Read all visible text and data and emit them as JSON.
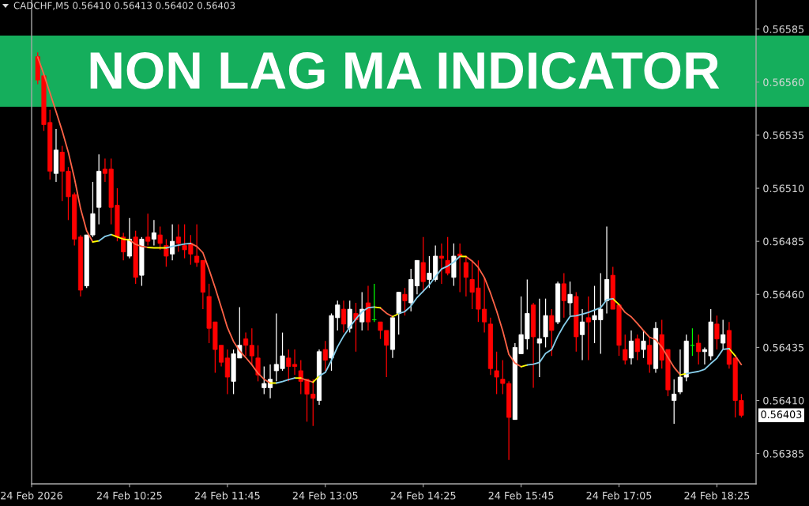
{
  "chart_data": {
    "type": "candlestick",
    "title": "NON LAG MA INDICATOR",
    "subtitle": "CADCHF,M5 0.56410 0.56413 0.56402 0.56403",
    "x": [
      "2026-02-24T09:10",
      "2026-02-24T09:15",
      "2026-02-24T09:20",
      "2026-02-24T09:25",
      "2026-02-24T09:30",
      "2026-02-24T09:35",
      "2026-02-24T09:40",
      "2026-02-24T09:45",
      "2026-02-24T09:50",
      "2026-02-24T09:55",
      "2026-02-24T10:00",
      "2026-02-24T10:05",
      "2026-02-24T10:10",
      "2026-02-24T10:15",
      "2026-02-24T10:20",
      "2026-02-24T10:25",
      "2026-02-24T10:30",
      "2026-02-24T10:35",
      "2026-02-24T10:40",
      "2026-02-24T10:45",
      "2026-02-24T10:50",
      "2026-02-24T10:55",
      "2026-02-24T11:00",
      "2026-02-24T11:05",
      "2026-02-24T11:10",
      "2026-02-24T11:15",
      "2026-02-24T11:20",
      "2026-02-24T11:25",
      "2026-02-24T11:30",
      "2026-02-24T11:35",
      "2026-02-24T11:40",
      "2026-02-24T11:45",
      "2026-02-24T11:50",
      "2026-02-24T11:55",
      "2026-02-24T12:00",
      "2026-02-24T12:05",
      "2026-02-24T12:10",
      "2026-02-24T12:15",
      "2026-02-24T12:20",
      "2026-02-24T12:25",
      "2026-02-24T12:30",
      "2026-02-24T12:35",
      "2026-02-24T12:40",
      "2026-02-24T12:45",
      "2026-02-24T12:50",
      "2026-02-24T12:55",
      "2026-02-24T13:00",
      "2026-02-24T13:05",
      "2026-02-24T13:10",
      "2026-02-24T13:15",
      "2026-02-24T13:20",
      "2026-02-24T13:25",
      "2026-02-24T13:30",
      "2026-02-24T13:35",
      "2026-02-24T13:40",
      "2026-02-24T13:45",
      "2026-02-24T13:50",
      "2026-02-24T13:55",
      "2026-02-24T14:00",
      "2026-02-24T14:05",
      "2026-02-24T14:10",
      "2026-02-24T14:15",
      "2026-02-24T14:20",
      "2026-02-24T14:25",
      "2026-02-24T14:30",
      "2026-02-24T14:35",
      "2026-02-24T14:40",
      "2026-02-24T14:45",
      "2026-02-24T14:50",
      "2026-02-24T14:55",
      "2026-02-24T15:00",
      "2026-02-24T15:05",
      "2026-02-24T15:10",
      "2026-02-24T15:15",
      "2026-02-24T15:20",
      "2026-02-24T15:25",
      "2026-02-24T15:30",
      "2026-02-24T15:35",
      "2026-02-24T15:40",
      "2026-02-24T15:45",
      "2026-02-24T15:50",
      "2026-02-24T15:55",
      "2026-02-24T16:00",
      "2026-02-24T16:05",
      "2026-02-24T16:10",
      "2026-02-24T16:15",
      "2026-02-24T16:20",
      "2026-02-24T16:25",
      "2026-02-24T16:30",
      "2026-02-24T16:35",
      "2026-02-24T16:40",
      "2026-02-24T16:45",
      "2026-02-24T16:50",
      "2026-02-24T16:55",
      "2026-02-24T17:00",
      "2026-02-24T17:05",
      "2026-02-24T17:10",
      "2026-02-24T17:15",
      "2026-02-24T17:20",
      "2026-02-24T17:25",
      "2026-02-24T17:30",
      "2026-02-24T17:35",
      "2026-02-24T17:40",
      "2026-02-24T17:45",
      "2026-02-24T17:50",
      "2026-02-24T17:55",
      "2026-02-24T18:00",
      "2026-02-24T18:05",
      "2026-02-24T18:10",
      "2026-02-24T18:15",
      "2026-02-24T18:20",
      "2026-02-24T18:25",
      "2026-02-24T18:30",
      "2026-02-24T18:35",
      "2026-02-24T18:40",
      "2026-02-24T18:45"
    ],
    "ohlc": [
      [
        0.56572,
        0.56574,
        0.56559,
        0.56561
      ],
      [
        0.56563,
        0.56563,
        0.56537,
        0.5654
      ],
      [
        0.56541,
        0.56547,
        0.56514,
        0.56518
      ],
      [
        0.56517,
        0.56538,
        0.56513,
        0.56528
      ],
      [
        0.56527,
        0.5653,
        0.56504,
        0.56518
      ],
      [
        0.56518,
        0.5652,
        0.56495,
        0.56506
      ],
      [
        0.56507,
        0.56508,
        0.56483,
        0.56486
      ],
      [
        0.56487,
        0.56488,
        0.56459,
        0.56462
      ],
      [
        0.56464,
        0.56488,
        0.56463,
        0.56488
      ],
      [
        0.56488,
        0.56513,
        0.56487,
        0.56498
      ],
      [
        0.56501,
        0.56526,
        0.56493,
        0.56518
      ],
      [
        0.56519,
        0.56524,
        0.56513,
        0.56517
      ],
      [
        0.56519,
        0.56524,
        0.56493,
        0.56501
      ],
      [
        0.56502,
        0.5651,
        0.56485,
        0.56487
      ],
      [
        0.56487,
        0.56489,
        0.56476,
        0.5648
      ],
      [
        0.56478,
        0.56496,
        0.56477,
        0.56486
      ],
      [
        0.56487,
        0.5649,
        0.56465,
        0.56468
      ],
      [
        0.56469,
        0.56487,
        0.56464,
        0.56486
      ],
      [
        0.56487,
        0.56498,
        0.56483,
        0.56485
      ],
      [
        0.56486,
        0.56495,
        0.56483,
        0.56489
      ],
      [
        0.56488,
        0.56492,
        0.56481,
        0.56484
      ],
      [
        0.56483,
        0.56486,
        0.56473,
        0.56478
      ],
      [
        0.56479,
        0.56493,
        0.56476,
        0.56485
      ],
      [
        0.56487,
        0.56493,
        0.5648,
        0.56484
      ],
      [
        0.56483,
        0.56493,
        0.56477,
        0.56481
      ],
      [
        0.56484,
        0.56488,
        0.56474,
        0.56479
      ],
      [
        0.56478,
        0.56493,
        0.56473,
        0.56475
      ],
      [
        0.56476,
        0.56476,
        0.56453,
        0.56461
      ],
      [
        0.56459,
        0.56465,
        0.56437,
        0.56444
      ],
      [
        0.56447,
        0.56447,
        0.56423,
        0.56434
      ],
      [
        0.56436,
        0.56436,
        0.56426,
        0.56428
      ],
      [
        0.5643,
        0.56434,
        0.56413,
        0.56421
      ],
      [
        0.56419,
        0.56434,
        0.56413,
        0.56432
      ],
      [
        0.5643,
        0.56454,
        0.5643,
        0.56436
      ],
      [
        0.56439,
        0.56442,
        0.56431,
        0.56436
      ],
      [
        0.56436,
        0.56444,
        0.56427,
        0.56431
      ],
      [
        0.5643,
        0.56436,
        0.56419,
        0.56422
      ],
      [
        0.56416,
        0.56426,
        0.56413,
        0.56418
      ],
      [
        0.56416,
        0.56427,
        0.56411,
        0.5642
      ],
      [
        0.56424,
        0.56451,
        0.56419,
        0.56427
      ],
      [
        0.56425,
        0.56442,
        0.56424,
        0.56431
      ],
      [
        0.5643,
        0.56434,
        0.56419,
        0.56426
      ],
      [
        0.56427,
        0.56434,
        0.56422,
        0.56426
      ],
      [
        0.56424,
        0.56429,
        0.56413,
        0.56419
      ],
      [
        0.5642,
        0.5642,
        0.564,
        0.56413
      ],
      [
        0.56413,
        0.5642,
        0.56398,
        0.56411
      ],
      [
        0.5641,
        0.56434,
        0.56408,
        0.56433
      ],
      [
        0.56434,
        0.56438,
        0.56424,
        0.56429
      ],
      [
        0.5643,
        0.56451,
        0.56424,
        0.5645
      ],
      [
        0.56449,
        0.56457,
        0.56443,
        0.56455
      ],
      [
        0.56453,
        0.56457,
        0.56442,
        0.56446
      ],
      [
        0.56444,
        0.56457,
        0.56442,
        0.56453
      ],
      [
        0.56451,
        0.56456,
        0.56433,
        0.56448
      ],
      [
        0.56447,
        0.56461,
        0.56443,
        0.56453
      ],
      [
        0.56456,
        0.56464,
        0.56443,
        0.56447
      ],
      [
        0.56448,
        0.56465,
        0.56447,
        0.56448
      ],
      [
        0.56447,
        0.56447,
        0.56439,
        0.56443
      ],
      [
        0.56443,
        0.56443,
        0.56421,
        0.56436
      ],
      [
        0.56434,
        0.5645,
        0.5643,
        0.56449
      ],
      [
        0.56451,
        0.56461,
        0.56441,
        0.56461
      ],
      [
        0.5646,
        0.56463,
        0.5645,
        0.56457
      ],
      [
        0.56456,
        0.56472,
        0.56452,
        0.56467
      ],
      [
        0.56464,
        0.56476,
        0.5646,
        0.56476
      ],
      [
        0.56475,
        0.56487,
        0.56461,
        0.56466
      ],
      [
        0.56467,
        0.56478,
        0.56463,
        0.5647
      ],
      [
        0.56467,
        0.56483,
        0.56466,
        0.56478
      ],
      [
        0.56478,
        0.56484,
        0.56465,
        0.56477
      ],
      [
        0.56476,
        0.56487,
        0.56469,
        0.5647
      ],
      [
        0.56468,
        0.56484,
        0.56464,
        0.56478
      ],
      [
        0.56479,
        0.56484,
        0.56461,
        0.56478
      ],
      [
        0.56475,
        0.56478,
        0.56459,
        0.56468
      ],
      [
        0.56467,
        0.56476,
        0.56453,
        0.56461
      ],
      [
        0.56463,
        0.56476,
        0.56447,
        0.56453
      ],
      [
        0.56453,
        0.56468,
        0.56442,
        0.56447
      ],
      [
        0.56446,
        0.56449,
        0.56422,
        0.56425
      ],
      [
        0.56424,
        0.56433,
        0.56413,
        0.56421
      ],
      [
        0.5642,
        0.56429,
        0.56413,
        0.56418
      ],
      [
        0.56418,
        0.56419,
        0.56382,
        0.56402
      ],
      [
        0.56401,
        0.56437,
        0.56401,
        0.56435
      ],
      [
        0.56432,
        0.56459,
        0.56432,
        0.56441
      ],
      [
        0.56439,
        0.56467,
        0.56434,
        0.56451
      ],
      [
        0.56455,
        0.56456,
        0.56416,
        0.5644
      ],
      [
        0.56437,
        0.56458,
        0.56421,
        0.56439
      ],
      [
        0.5644,
        0.56458,
        0.56435,
        0.5645
      ],
      [
        0.5645,
        0.56453,
        0.56431,
        0.56443
      ],
      [
        0.56447,
        0.56466,
        0.56446,
        0.56465
      ],
      [
        0.56465,
        0.5647,
        0.56449,
        0.56457
      ],
      [
        0.56456,
        0.56466,
        0.5645,
        0.5646
      ],
      [
        0.56459,
        0.56461,
        0.56433,
        0.5644
      ],
      [
        0.56441,
        0.56453,
        0.56429,
        0.56447
      ],
      [
        0.56449,
        0.56459,
        0.56429,
        0.56447
      ],
      [
        0.56448,
        0.56464,
        0.56437,
        0.5645
      ],
      [
        0.56448,
        0.5647,
        0.56432,
        0.56453
      ],
      [
        0.56457,
        0.56492,
        0.56451,
        0.56467
      ],
      [
        0.56469,
        0.56473,
        0.56453,
        0.56453
      ],
      [
        0.56455,
        0.56455,
        0.56431,
        0.56436
      ],
      [
        0.56434,
        0.56441,
        0.56427,
        0.56429
      ],
      [
        0.5643,
        0.56443,
        0.56427,
        0.56438
      ],
      [
        0.56439,
        0.56441,
        0.56429,
        0.56433
      ],
      [
        0.56434,
        0.56443,
        0.5643,
        0.56438
      ],
      [
        0.56436,
        0.5644,
        0.56423,
        0.56427
      ],
      [
        0.56425,
        0.56447,
        0.56423,
        0.56444
      ],
      [
        0.56441,
        0.56448,
        0.56425,
        0.56429
      ],
      [
        0.56434,
        0.56434,
        0.56412,
        0.56415
      ],
      [
        0.5641,
        0.5642,
        0.56399,
        0.56413
      ],
      [
        0.56414,
        0.56434,
        0.56413,
        0.56421
      ],
      [
        0.56421,
        0.56441,
        0.56419,
        0.56438
      ],
      [
        0.56436,
        0.56444,
        0.56431,
        0.56436
      ],
      [
        0.56437,
        0.56441,
        0.56427,
        0.56433
      ],
      [
        0.56433,
        0.56435,
        0.56427,
        0.56434
      ],
      [
        0.56431,
        0.56453,
        0.56429,
        0.56447
      ],
      [
        0.56446,
        0.5645,
        0.56434,
        0.56439
      ],
      [
        0.56437,
        0.56448,
        0.56434,
        0.56441
      ],
      [
        0.56443,
        0.56447,
        0.56425,
        0.56427
      ],
      [
        0.5643,
        0.5643,
        0.56402,
        0.5641
      ],
      [
        0.5641,
        0.56413,
        0.56402,
        0.56403
      ]
    ],
    "colors": [
      "#ff0000",
      "#ff0000",
      "#ff0000",
      "#ffffff",
      "#ff0000",
      "#ff0000",
      "#ff0000",
      "#ff0000",
      "#ffffff",
      "#ffffff",
      "#ffffff",
      "#ff0000",
      "#ff0000",
      "#ff0000",
      "#ff0000",
      "#ffffff",
      "#ff0000",
      "#ffffff",
      "#ff0000",
      "#ffffff",
      "#ff0000",
      "#ff0000",
      "#ffffff",
      "#ff0000",
      "#ff0000",
      "#ff0000",
      "#ff0000",
      "#ff0000",
      "#ff0000",
      "#ff0000",
      "#ff0000",
      "#ff0000",
      "#ffffff",
      "#ffffff",
      "#ff0000",
      "#ff0000",
      "#ff0000",
      "#ffffff",
      "#ffffff",
      "#ffffff",
      "#ffffff",
      "#ff0000",
      "#ff0000",
      "#ff0000",
      "#ff0000",
      "#ff0000",
      "#ffffff",
      "#ff0000",
      "#ffffff",
      "#ffffff",
      "#ff0000",
      "#ffffff",
      "#ff0000",
      "#ffffff",
      "#ff0000",
      "#00ff00",
      "#ff0000",
      "#ff0000",
      "#ffffff",
      "#ffffff",
      "#ff0000",
      "#ffffff",
      "#ffffff",
      "#ff0000",
      "#ffffff",
      "#ffffff",
      "#ff0000",
      "#ff0000",
      "#ffffff",
      "#ff0000",
      "#ff0000",
      "#ff0000",
      "#ff0000",
      "#ff0000",
      "#ff0000",
      "#ff0000",
      "#ff0000",
      "#ff0000",
      "#ffffff",
      "#ffffff",
      "#ffffff",
      "#ff0000",
      "#ffffff",
      "#ffffff",
      "#ff0000",
      "#ffffff",
      "#ff0000",
      "#ffffff",
      "#ff0000",
      "#ffffff",
      "#ff0000",
      "#ffffff",
      "#ffffff",
      "#ffffff",
      "#ff0000",
      "#ff0000",
      "#ff0000",
      "#ffffff",
      "#ff0000",
      "#ffffff",
      "#ff0000",
      "#ffffff",
      "#ff0000",
      "#ff0000",
      "#ffffff",
      "#ffffff",
      "#ffffff",
      "#00ff00",
      "#ff0000",
      "#ffffff",
      "#ffffff",
      "#ff0000",
      "#ffffff",
      "#ff0000",
      "#ff0000",
      "#ff0000"
    ],
    "series": [
      {
        "type": "line",
        "color": "#ff6347",
        "values": [
          0.565718,
          0.565637,
          0.565549,
          0.565461,
          0.56537,
          0.56527,
          0.565147,
          0.565004,
          0.564899,
          0.564847,
          null,
          null,
          null,
          null,
          null,
          0.564856,
          0.564835,
          0.564826,
          0.564821,
          null,
          null,
          null,
          null,
          null,
          null,
          0.56484,
          0.564826,
          0.564796,
          0.564717,
          0.564631,
          0.564539,
          0.564444,
          0.564378,
          0.564334,
          0.564302,
          0.564268,
          0.564228,
          0.5642,
          0.564182,
          null,
          null,
          null,
          null,
          0.564206,
          0.564195,
          0.564186,
          null,
          null,
          null,
          null,
          null,
          null,
          null,
          null,
          null,
          null,
          0.564536,
          0.564511,
          0.564495,
          null,
          null,
          null,
          null,
          null,
          null,
          null,
          null,
          null,
          null,
          null,
          0.564778,
          0.564757,
          0.564727,
          0.564679,
          0.564606,
          0.564522,
          0.564428,
          0.564317,
          0.564276,
          0.564259,
          null,
          null,
          null,
          null,
          null,
          null,
          null,
          null,
          null,
          null,
          null,
          null,
          null,
          null,
          null,
          0.564552,
          0.564515,
          0.564494,
          0.564463,
          0.564429,
          0.564398,
          0.564386,
          0.564352,
          0.564303,
          0.564256,
          0.564221,
          null,
          null,
          null,
          null,
          null,
          null,
          null,
          null,
          0.56431,
          0.564269
        ]
      },
      {
        "type": "line",
        "color": "#ffff00",
        "values": [
          null,
          null,
          null,
          null,
          null,
          null,
          null,
          null,
          null,
          0.564847,
          0.564852,
          null,
          0.564882,
          0.564871,
          0.56486,
          0.564856,
          null,
          null,
          0.564821,
          0.564819,
          0.564819,
          0.564819,
          null,
          null,
          null,
          null,
          null,
          null,
          null,
          null,
          null,
          null,
          null,
          null,
          null,
          null,
          null,
          null,
          0.564182,
          0.564182,
          null,
          null,
          0.564206,
          0.564206,
          null,
          0.564186,
          0.564215,
          null,
          null,
          null,
          null,
          null,
          null,
          null,
          null,
          0.56454,
          0.564536,
          null,
          0.564495,
          0.564509,
          null,
          null,
          null,
          null,
          null,
          null,
          null,
          null,
          null,
          0.564779,
          0.564778,
          null,
          null,
          null,
          null,
          null,
          null,
          null,
          null,
          0.564259,
          0.564267,
          null,
          null,
          null,
          null,
          null,
          null,
          null,
          null,
          null,
          null,
          null,
          null,
          null,
          0.564579,
          0.564552,
          null,
          null,
          null,
          null,
          null,
          null,
          null,
          null,
          null,
          0.564221,
          0.564226,
          null,
          null,
          null,
          null,
          null,
          null,
          0.564344,
          0.56431,
          null
        ]
      },
      {
        "type": "line",
        "color": "#87ceeb",
        "values": [
          null,
          null,
          null,
          null,
          null,
          null,
          null,
          null,
          null,
          null,
          0.564852,
          0.564873,
          0.564882,
          null,
          null,
          null,
          null,
          null,
          null,
          null,
          null,
          0.564819,
          0.564826,
          0.564832,
          0.564837,
          0.56484,
          null,
          null,
          null,
          null,
          null,
          null,
          null,
          null,
          null,
          null,
          null,
          null,
          null,
          0.564182,
          0.564189,
          0.564198,
          0.564206,
          null,
          null,
          null,
          0.564215,
          0.564232,
          0.564289,
          0.564353,
          0.564404,
          0.564446,
          0.564484,
          0.564518,
          0.564537,
          0.56454,
          null,
          null,
          null,
          0.564509,
          0.564519,
          0.564545,
          0.564585,
          0.564615,
          0.564645,
          0.564683,
          0.56472,
          0.564733,
          0.564752,
          0.564779,
          null,
          null,
          null,
          null,
          null,
          null,
          null,
          null,
          null,
          null,
          0.564267,
          0.564271,
          0.564279,
          0.564322,
          0.56434,
          0.564403,
          0.564454,
          0.564496,
          0.564499,
          0.564507,
          0.564515,
          0.564526,
          0.564537,
          0.564575,
          0.564579,
          null,
          null,
          null,
          null,
          null,
          null,
          null,
          null,
          null,
          null,
          null,
          0.564226,
          0.564232,
          0.564237,
          0.564247,
          0.564274,
          0.564299,
          0.564341,
          0.564344,
          null,
          null
        ]
      }
    ],
    "xlim": [
      "2026-02-24T09:05",
      "2026-02-24T18:57"
    ],
    "xticks": [
      {
        "value": "2026-02-24T09:05",
        "label": "24 Feb 2026"
      },
      {
        "value": "2026-02-24T10:25",
        "label": "24 Feb 10:25"
      },
      {
        "value": "2026-02-24T11:45",
        "label": "24 Feb 11:45"
      },
      {
        "value": "2026-02-24T13:05",
        "label": "24 Feb 13:05"
      },
      {
        "value": "2026-02-24T14:25",
        "label": "24 Feb 14:25"
      },
      {
        "value": "2026-02-24T15:45",
        "label": "24 Feb 15:45"
      },
      {
        "value": "2026-02-24T17:05",
        "label": "24 Feb 17:05"
      },
      {
        "value": "2026-02-24T18:25",
        "label": "24 Feb 18:25"
      }
    ],
    "ylim": [
      0.563707,
      0.565987
    ],
    "yticks": [
      {
        "value": 0.56385,
        "label": "0.56385"
      },
      {
        "value": 0.5641,
        "label": "0.56410"
      },
      {
        "value": 0.56435,
        "label": "0.56435"
      },
      {
        "value": 0.5646,
        "label": "0.56460"
      },
      {
        "value": 0.56485,
        "label": "0.56485"
      },
      {
        "value": 0.5651,
        "label": "0.56510"
      },
      {
        "value": 0.56535,
        "label": "0.56535"
      },
      {
        "value": 0.5656,
        "label": "0.56560"
      },
      {
        "value": 0.56585,
        "label": "0.56585"
      }
    ],
    "annotations": [
      {
        "text": "0.56403",
        "x": "2026-02-24T18:45",
        "y": 0.56403
      }
    ]
  }
}
